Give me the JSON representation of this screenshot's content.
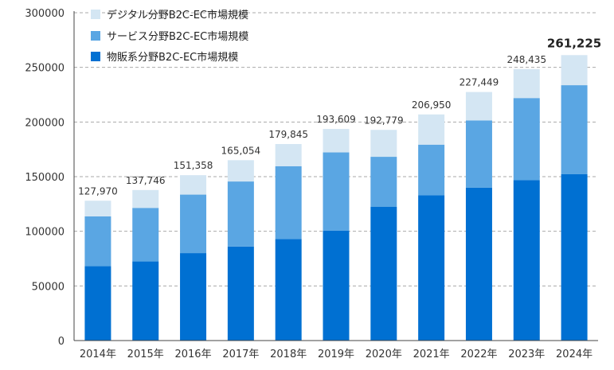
{
  "chart_data": {
    "type": "bar",
    "stacked": true,
    "categories": [
      "2014年",
      "2015年",
      "2016年",
      "2017年",
      "2018年",
      "2019年",
      "2020年",
      "2021年",
      "2022年",
      "2023年",
      "2024年"
    ],
    "series": [
      {
        "name": "物販系分野B2C-EC市場規模",
        "color": "#0070D2",
        "values": [
          68043,
          72398,
          80043,
          86008,
          92992,
          100515,
          122333,
          132865,
          139997,
          146760,
          152194
        ]
      },
      {
        "name": "サービス分野B2C-EC市場規模",
        "color": "#5AA6E3",
        "values": [
          45620,
          49014,
          53532,
          59568,
          66471,
          71672,
          45832,
          46424,
          61477,
          75169,
          81492
        ]
      },
      {
        "name": "デジタル分野B2C-EC市場規模",
        "color": "#D4E6F3",
        "values": [
          14307,
          16334,
          17783,
          19478,
          20382,
          21422,
          24614,
          27661,
          25975,
          26506,
          27539
        ]
      }
    ],
    "totals": [
      "127,970",
      "137,746",
      "151,358",
      "165,054",
      "179,845",
      "193,609",
      "192,779",
      "206,950",
      "227,449",
      "248,435",
      "261,225"
    ],
    "total_values": [
      127970,
      137746,
      151358,
      165054,
      179845,
      193609,
      192779,
      206950,
      227449,
      248435,
      261225
    ],
    "y_ticks": [
      "0",
      "50000",
      "100000",
      "150000",
      "200000",
      "250000",
      "300000"
    ],
    "y_tick_values": [
      0,
      50000,
      100000,
      150000,
      200000,
      250000,
      300000
    ],
    "ylim": [
      0,
      300000
    ],
    "grid": true,
    "legend_position": "top-left",
    "title": "",
    "xlabel": "",
    "ylabel": ""
  },
  "legend": {
    "items": [
      {
        "label": "デジタル分野B2C-EC市場規模",
        "color": "#D4E6F3"
      },
      {
        "label": "サービス分野B2C-EC市場規模",
        "color": "#5AA6E3"
      },
      {
        "label": "物販系分野B2C-EC市場規模",
        "color": "#0070D2"
      }
    ]
  },
  "colors": {
    "axis": "#444444",
    "grid": "#aaaaaa"
  }
}
